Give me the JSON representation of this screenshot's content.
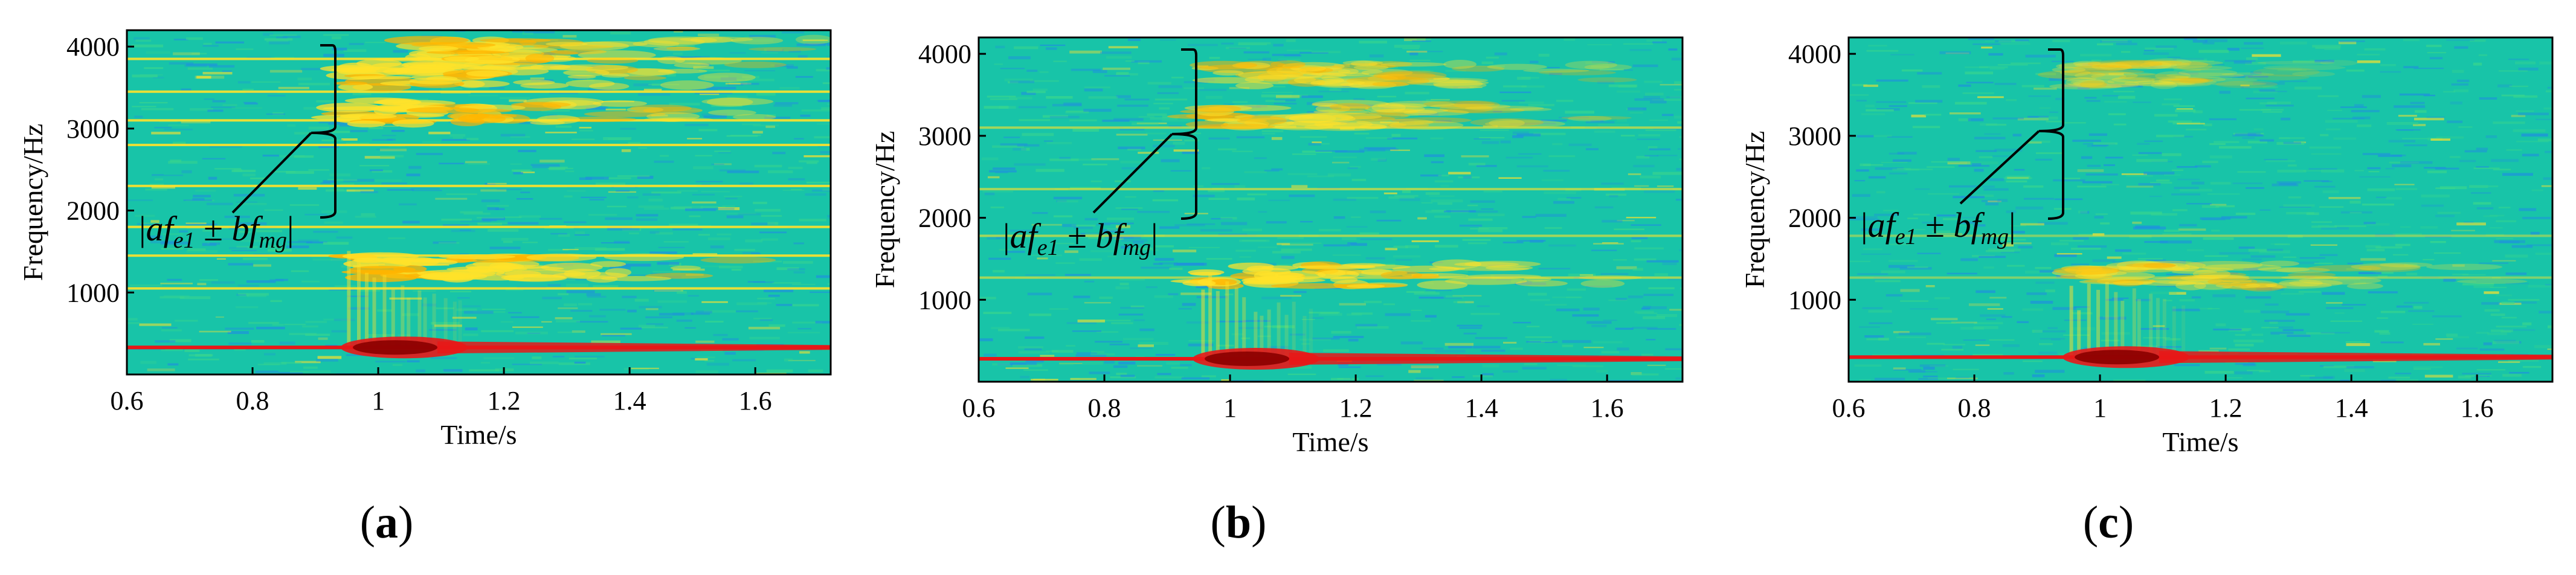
{
  "figure": {
    "panels": [
      {
        "label_prefix": "(",
        "label_letter": "a",
        "label_suffix": ")",
        "annotation": {
          "open": "|",
          "base1": "af",
          "sub1": "e1",
          "op": " ± ",
          "base2": "bf",
          "sub2": "mg",
          "close": "|"
        }
      },
      {
        "label_prefix": "(",
        "label_letter": "b",
        "label_suffix": ")",
        "annotation": {
          "open": "|",
          "base1": "af",
          "sub1": "e1",
          "op": " ± ",
          "base2": "bf",
          "sub2": "mg",
          "close": "|"
        }
      },
      {
        "label_prefix": "(",
        "label_letter": "c",
        "label_suffix": ")",
        "annotation": {
          "open": "|",
          "base1": "af",
          "sub1": "e1",
          "op": " ± ",
          "base2": "bf",
          "sub2": "mg",
          "close": "|"
        }
      }
    ]
  },
  "colors": {
    "background": "#18c4a8",
    "noise_low": "#1f8fe0",
    "noise_mid": "#3ad68c",
    "harmonic": "#ffe22a",
    "harmonic_strong": "#ffb400",
    "fundamental": "#e81818",
    "burst_core": "#8a0000"
  },
  "chart_data": [
    {
      "type": "heatmap",
      "subtype": "spectrogram",
      "xlabel": "Time/s",
      "ylabel": "Frequency/Hz",
      "xlim": [
        0.6,
        1.72
      ],
      "ylim": [
        0,
        4200
      ],
      "xticks": [
        0.6,
        0.8,
        1,
        1.2,
        1.4,
        1.6
      ],
      "xtick_labels": [
        "0.6",
        "0.8",
        "1",
        "1.2",
        "1.4",
        "1.6"
      ],
      "yticks": [
        1000,
        2000,
        3000,
        4000
      ],
      "ytick_labels": [
        "1000",
        "2000",
        "3000",
        "4000"
      ],
      "fundamental_hz": 330,
      "event_onset_s": 0.95,
      "harmonic_lines_hz": [
        1050,
        1450,
        1800,
        2300,
        2800,
        3100,
        3450,
        3850
      ],
      "harmonic_intensity": 0.9,
      "highlight_bands": [
        {
          "freq_hz": 1300,
          "t_start": 0.95,
          "t_end": 1.72,
          "intensity": 0.95
        },
        {
          "freq_hz": 3200,
          "t_start": 0.95,
          "t_end": 1.72,
          "intensity": 0.85
        },
        {
          "freq_hz": 3650,
          "t_start": 0.95,
          "t_end": 1.72,
          "intensity": 0.85
        },
        {
          "freq_hz": 3950,
          "t_start": 1.05,
          "t_end": 1.72,
          "intensity": 0.8
        }
      ],
      "annotation_brace_hz": [
        1950,
        4000
      ],
      "grid": false
    },
    {
      "type": "heatmap",
      "subtype": "spectrogram",
      "xlabel": "Time/s",
      "ylabel": "Frequency/Hz",
      "xlim": [
        0.6,
        1.72
      ],
      "ylim": [
        0,
        4200
      ],
      "xticks": [
        0.6,
        0.8,
        1,
        1.2,
        1.4,
        1.6
      ],
      "xtick_labels": [
        "0.6",
        "0.8",
        "1",
        "1.2",
        "1.4",
        "1.6"
      ],
      "yticks": [
        1000,
        2000,
        3000,
        4000
      ],
      "ytick_labels": [
        "1000",
        "2000",
        "3000",
        "4000"
      ],
      "fundamental_hz": 280,
      "event_onset_s": 0.95,
      "harmonic_lines_hz": [
        1270,
        1780,
        2350,
        3100
      ],
      "harmonic_intensity": 0.6,
      "highlight_bands": [
        {
          "freq_hz": 1300,
          "t_start": 0.95,
          "t_end": 1.72,
          "intensity": 0.85
        },
        {
          "freq_hz": 3250,
          "t_start": 0.95,
          "t_end": 1.72,
          "intensity": 0.6
        },
        {
          "freq_hz": 3750,
          "t_start": 0.95,
          "t_end": 1.72,
          "intensity": 0.6
        }
      ],
      "annotation_brace_hz": [
        1900,
        4000
      ],
      "grid": false
    },
    {
      "type": "heatmap",
      "subtype": "spectrogram",
      "xlabel": "Time/s",
      "ylabel": "Frequency/Hz",
      "xlim": [
        0.6,
        1.72
      ],
      "ylim": [
        0,
        4200
      ],
      "xticks": [
        0.6,
        0.8,
        1,
        1.2,
        1.4,
        1.6
      ],
      "xtick_labels": [
        "0.6",
        "0.8",
        "1",
        "1.2",
        "1.4",
        "1.6"
      ],
      "yticks": [
        1000,
        2000,
        3000,
        4000
      ],
      "ytick_labels": [
        "1000",
        "2000",
        "3000",
        "4000"
      ],
      "fundamental_hz": 300,
      "event_onset_s": 0.95,
      "harmonic_lines_hz": [
        1270,
        1780
      ],
      "harmonic_intensity": 0.45,
      "highlight_bands": [
        {
          "freq_hz": 1300,
          "t_start": 0.95,
          "t_end": 1.72,
          "intensity": 0.55
        },
        {
          "freq_hz": 3750,
          "t_start": 0.95,
          "t_end": 1.4,
          "intensity": 0.35
        }
      ],
      "annotation_brace_hz": [
        1850,
        3950
      ],
      "grid": false
    }
  ]
}
